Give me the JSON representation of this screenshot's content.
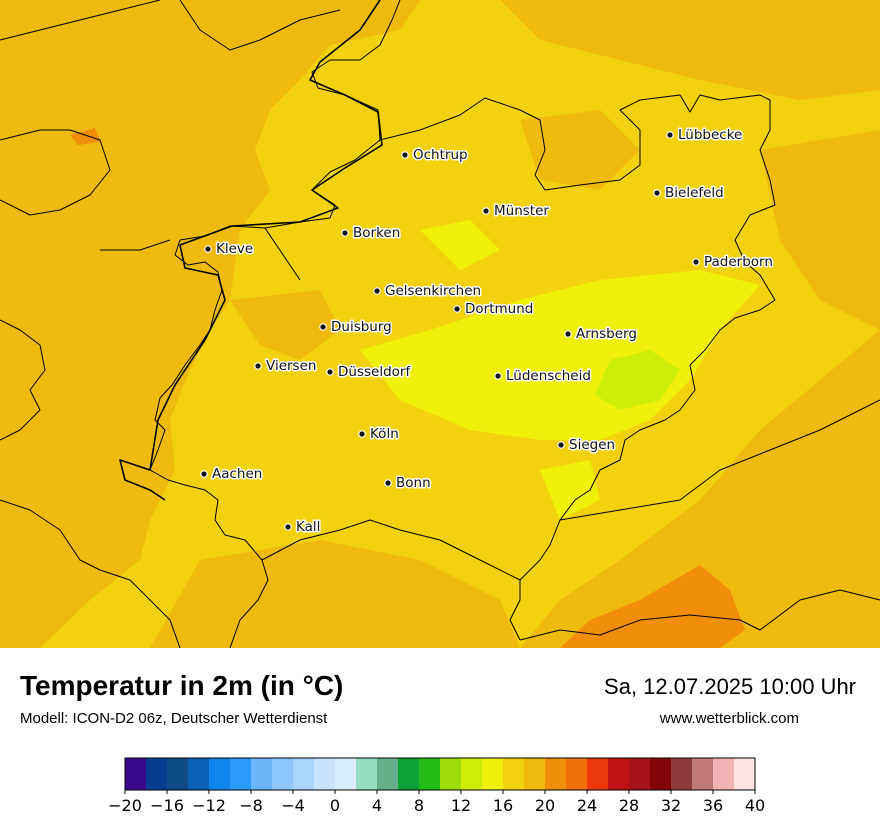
{
  "map": {
    "background_color": "#F2D20E",
    "region_colors": {
      "cooler_west": "#F0B90E",
      "cool_highland": "#F0F00A",
      "coldest_spot": "#CCEE0A",
      "warm_southeast": "#F08E0A"
    },
    "border_color": "#000000",
    "cities": [
      {
        "name": "Lübbecke"
      },
      {
        "name": "Ochtrup"
      },
      {
        "name": "Bielefeld"
      },
      {
        "name": "Münster"
      },
      {
        "name": "Borken"
      },
      {
        "name": "Kleve"
      },
      {
        "name": "Paderborn"
      },
      {
        "name": "Gelsenkirchen"
      },
      {
        "name": "Dortmund"
      },
      {
        "name": "Duisburg"
      },
      {
        "name": "Arnsberg"
      },
      {
        "name": "Viersen"
      },
      {
        "name": "Düsseldorf"
      },
      {
        "name": "Lüdenscheid"
      },
      {
        "name": "Köln"
      },
      {
        "name": "Siegen"
      },
      {
        "name": "Aachen"
      },
      {
        "name": "Bonn"
      },
      {
        "name": "Kall"
      }
    ]
  },
  "footer": {
    "title": "Temperatur in 2m (in °C)",
    "model": "Modell: ICON-D2 06z, Deutscher Wetterdienst",
    "datetime": "Sa, 12.07.2025 10:00 Uhr",
    "website": "www.wetterblick.com"
  },
  "legend": {
    "min": -20,
    "max": 40,
    "step": 2,
    "colors": [
      "#3A0A8C",
      "#073C8E",
      "#0E4A86",
      "#0B61B4",
      "#0E86EE",
      "#2A9BFB",
      "#6BB6F9",
      "#8DC5FA",
      "#A9D4FC",
      "#C6E2FD",
      "#D9EDFD",
      "#96DDC0",
      "#66AF8B",
      "#0BA337",
      "#21BD16",
      "#9EDC0A",
      "#CCEE0A",
      "#F0F00A",
      "#F2D20E",
      "#F0B90E",
      "#F08E0A",
      "#F0700A",
      "#E9390D",
      "#BF1313",
      "#A8131A",
      "#840508",
      "#8F3A3A",
      "#C07878",
      "#F1B3B3",
      "#FFE2E2"
    ],
    "tick_labels": [
      "−20",
      "−16",
      "−12",
      "−8",
      "−4",
      "0",
      "4",
      "8",
      "12",
      "16",
      "20",
      "24",
      "28",
      "32",
      "36",
      "40"
    ]
  }
}
